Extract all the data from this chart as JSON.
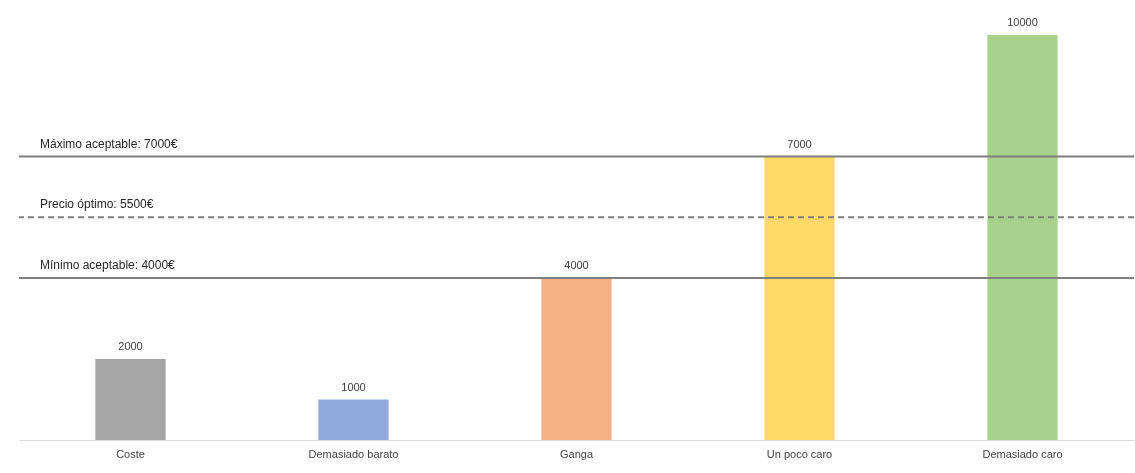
{
  "chart_data": {
    "type": "bar",
    "categories": [
      "Coste",
      "Demasiado barato",
      "Ganga",
      "Un poco caro",
      "Demasiado caro"
    ],
    "values": [
      2000,
      1000,
      4000,
      7000,
      10000
    ],
    "colors": [
      "#a5a5a5",
      "#8faadc",
      "#f4b183",
      "#ffd966",
      "#a9d18e"
    ],
    "data_labels": true,
    "grid": false,
    "legend": false,
    "ref_lines": [
      {
        "axis": "y",
        "value": 7000,
        "label": "Máximo aceptable: 7000€",
        "color": "#7f7f7f",
        "line_style": "solid"
      },
      {
        "axis": "y",
        "value": 5500,
        "label": "Precio óptimo: 5500€",
        "color": "#7f7f7f",
        "line_style": "dashed"
      },
      {
        "axis": "y",
        "value": 4000,
        "label": "Mínimo aceptable: 4000€",
        "color": "#7f7f7f",
        "line_style": "solid"
      }
    ]
  }
}
